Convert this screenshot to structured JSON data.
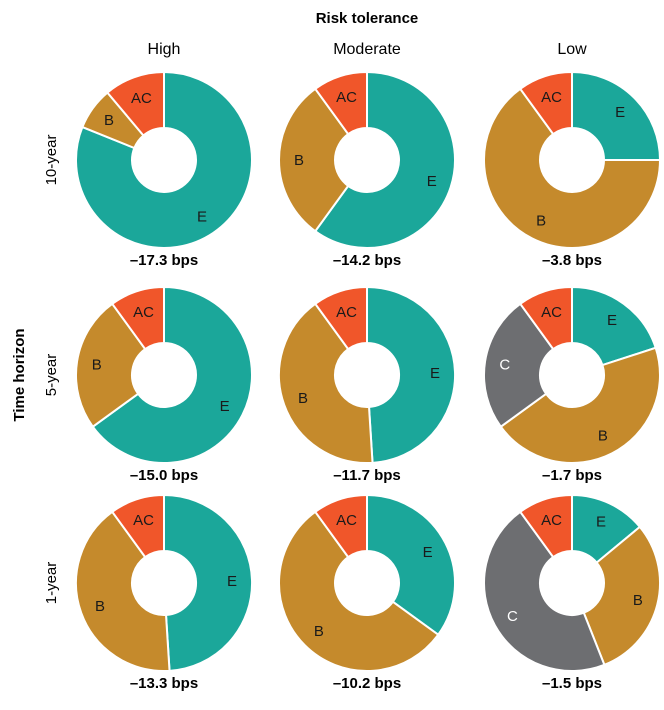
{
  "chart_data": {
    "type": "donut-grid",
    "title": "Risk tolerance",
    "row_axis_label": "Time horizon",
    "columns": [
      "High",
      "Moderate",
      "Low"
    ],
    "rows": [
      "10-year",
      "5-year",
      "1-year"
    ],
    "colors": {
      "AC": "#f0562a",
      "E": "#1ba79a",
      "B": "#c58a2c",
      "C": "#6d6e71"
    },
    "cells": [
      [
        {
          "result": "–17.3 bps",
          "segments": [
            {
              "label": "E",
              "value": 73
            },
            {
              "label": "B",
              "value": 0
            },
            {
              "label": "C",
              "value": 0
            },
            {
              "label": "B",
              "value": 7
            },
            {
              "label": "AC",
              "value": 10
            }
          ]
        },
        {
          "result": "–14.2 bps",
          "segments": [
            {
              "label": "E",
              "value": 60
            },
            {
              "label": "B",
              "value": 30
            },
            {
              "label": "AC",
              "value": 10
            }
          ]
        },
        {
          "result": "–3.8 bps",
          "segments": [
            {
              "label": "E",
              "value": 25
            },
            {
              "label": "B",
              "value": 65
            },
            {
              "label": "AC",
              "value": 10
            }
          ]
        }
      ],
      [
        {
          "result": "–15.0 bps",
          "segments": [
            {
              "label": "E",
              "value": 65
            },
            {
              "label": "B",
              "value": 25
            },
            {
              "label": "AC",
              "value": 10
            }
          ]
        },
        {
          "result": "–11.7 bps",
          "segments": [
            {
              "label": "E",
              "value": 49
            },
            {
              "label": "B",
              "value": 41
            },
            {
              "label": "AC",
              "value": 10
            }
          ]
        },
        {
          "result": "–1.7 bps",
          "segments": [
            {
              "label": "E",
              "value": 20
            },
            {
              "label": "B",
              "value": 45
            },
            {
              "label": "C",
              "value": 25
            },
            {
              "label": "AC",
              "value": 10
            }
          ]
        }
      ],
      [
        {
          "result": "–13.3 bps",
          "segments": [
            {
              "label": "E",
              "value": 49
            },
            {
              "label": "B",
              "value": 41
            },
            {
              "label": "AC",
              "value": 10
            }
          ]
        },
        {
          "result": "–10.2 bps",
          "segments": [
            {
              "label": "E",
              "value": 35
            },
            {
              "label": "B",
              "value": 55
            },
            {
              "label": "AC",
              "value": 10
            }
          ]
        },
        {
          "result": "–1.5 bps",
          "segments": [
            {
              "label": "E",
              "value": 14
            },
            {
              "label": "B",
              "value": 30
            },
            {
              "label": "C",
              "value": 46
            },
            {
              "label": "AC",
              "value": 10
            }
          ]
        }
      ]
    ]
  }
}
